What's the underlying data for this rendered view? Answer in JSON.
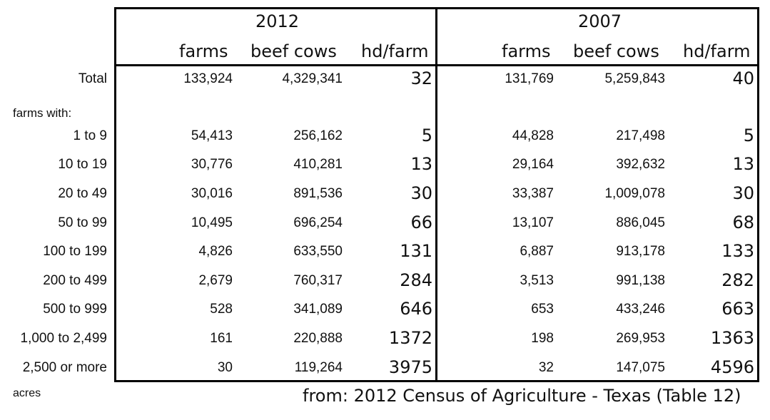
{
  "years": {
    "left": "2012",
    "right": "2007"
  },
  "headers": {
    "farms": "farms",
    "beef_cows": "beef cows",
    "hd_farm": "hd/farm"
  },
  "farms_with_label": "farms with:",
  "acres_label": "acres",
  "source": "from: 2012 Census of Agriculture - Texas (Table 12)",
  "rows": [
    {
      "label": "Total",
      "farms_2012": "133,924",
      "cows_2012": "4,329,341",
      "hd_2012": "32",
      "farms_2007": "131,769",
      "cows_2007": "5,259,843",
      "hd_2007": "40"
    },
    {
      "label": "1 to 9",
      "farms_2012": "54,413",
      "cows_2012": "256,162",
      "hd_2012": "5",
      "farms_2007": "44,828",
      "cows_2007": "217,498",
      "hd_2007": "5"
    },
    {
      "label": "10 to 19",
      "farms_2012": "30,776",
      "cows_2012": "410,281",
      "hd_2012": "13",
      "farms_2007": "29,164",
      "cows_2007": "392,632",
      "hd_2007": "13"
    },
    {
      "label": "20 to 49",
      "farms_2012": "30,016",
      "cows_2012": "891,536",
      "hd_2012": "30",
      "farms_2007": "33,387",
      "cows_2007": "1,009,078",
      "hd_2007": "30"
    },
    {
      "label": "50 to 99",
      "farms_2012": "10,495",
      "cows_2012": "696,254",
      "hd_2012": "66",
      "farms_2007": "13,107",
      "cows_2007": "886,045",
      "hd_2007": "68"
    },
    {
      "label": "100 to 199",
      "farms_2012": "4,826",
      "cows_2012": "633,550",
      "hd_2012": "131",
      "farms_2007": "6,887",
      "cows_2007": "913,178",
      "hd_2007": "133"
    },
    {
      "label": "200 to 499",
      "farms_2012": "2,679",
      "cows_2012": "760,317",
      "hd_2012": "284",
      "farms_2007": "3,513",
      "cows_2007": "991,138",
      "hd_2007": "282"
    },
    {
      "label": "500 to 999",
      "farms_2012": "528",
      "cows_2012": "341,089",
      "hd_2012": "646",
      "farms_2007": "653",
      "cows_2007": "433,246",
      "hd_2007": "663"
    },
    {
      "label": "1,000 to 2,499",
      "farms_2012": "161",
      "cows_2012": "220,888",
      "hd_2012": "1372",
      "farms_2007": "198",
      "cows_2007": "269,953",
      "hd_2007": "1363"
    },
    {
      "label": "2,500 or more",
      "farms_2012": "30",
      "cows_2012": "119,264",
      "hd_2012": "3975",
      "farms_2007": "32",
      "cows_2007": "147,075",
      "hd_2007": "4596"
    }
  ]
}
